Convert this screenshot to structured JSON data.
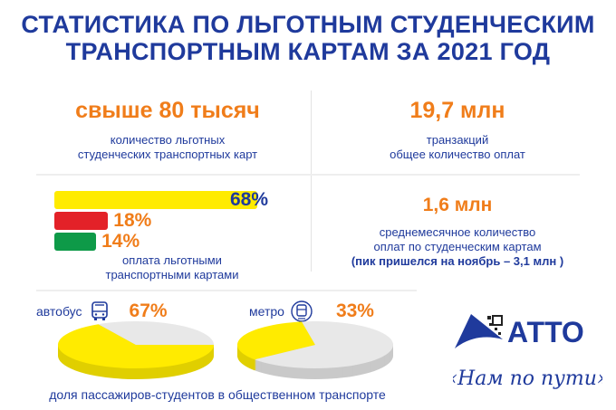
{
  "title": {
    "line1": "СТАТИСТИКА ПО ЛЬГОТНЫМ СТУДЕНЧЕСКИМ",
    "line2": "ТРАНСПОРТНЫМ КАРТАМ ЗА 2021 ГОД"
  },
  "stats": [
    {
      "value": "свыше 80 тысяч",
      "line1": "количество льготных",
      "line2": "студенческих транспортных карт"
    },
    {
      "value": "19,7 млн",
      "line1": "транзакций",
      "line2": "общее количество оплат"
    },
    {
      "value": "1,6 млн",
      "line1": "среднемесячное количество",
      "line2": "оплат по студенческим картам",
      "line3": "(пик пришелся на ноябрь – 3,1 млн )"
    }
  ],
  "colors": {
    "blue": "#1f3a9c",
    "orange": "#f07d1a",
    "yellow": "#ffeb00",
    "red": "#e32128",
    "green": "#0e9a48",
    "grey": "#e8e8e8"
  },
  "logo": {
    "name": "АТТО",
    "slogan": "«Нам по пути»"
  },
  "chart_data": [
    {
      "type": "bar",
      "title": "оплата льготными транспортными картами",
      "caption_line1": "оплата льготными",
      "caption_line2": "транспортными картами",
      "categories": [
        "yellow",
        "red",
        "green"
      ],
      "values": [
        68,
        18,
        14
      ],
      "labels": [
        "68%",
        "18%",
        "14%"
      ],
      "ylim": [
        0,
        100
      ]
    },
    {
      "type": "pie",
      "title": "доля пассажиров-студентов в общественном транспорте",
      "series": [
        {
          "name": "автобус",
          "icon": "bus-icon",
          "value": 67,
          "label": "67%"
        },
        {
          "name": "метро",
          "icon": "metro-icon",
          "value": 33,
          "label": "33%"
        }
      ]
    }
  ]
}
